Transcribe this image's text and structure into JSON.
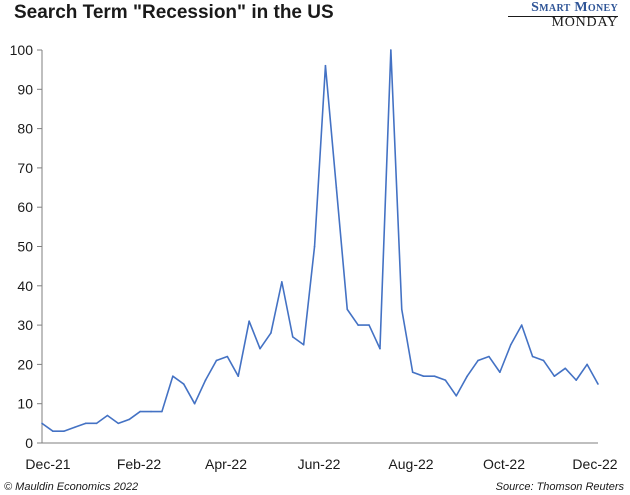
{
  "header": {
    "title": "Search Term \"Recession\" in the US",
    "brand_top": "Smart Money",
    "brand_bottom": "MONDAY"
  },
  "footer": {
    "copyright": "© Mauldin Economics 2022",
    "source": "Source: Thomson Reuters"
  },
  "colors": {
    "line": "#4472c4",
    "axis": "#7f7f7f",
    "brand": "#2f5597"
  },
  "chart_data": {
    "type": "line",
    "title": "Search Term \"Recession\" in the US",
    "xlabel": "",
    "ylabel": "",
    "ylim": [
      0,
      100
    ],
    "yticks": [
      0,
      10,
      20,
      30,
      40,
      50,
      60,
      70,
      80,
      90,
      100
    ],
    "xticks": [
      "Dec-21",
      "Feb-22",
      "Apr-22",
      "Jun-22",
      "Aug-22",
      "Oct-22",
      "Dec-22"
    ],
    "grid": false,
    "legend": "none",
    "series": [
      {
        "values": [
          5,
          3,
          3,
          4,
          5,
          5,
          7,
          5,
          6,
          8,
          8,
          8,
          17,
          15,
          10,
          16,
          21,
          22,
          17,
          31,
          24,
          28,
          41,
          27,
          25,
          50,
          96,
          65,
          34,
          30,
          30,
          24,
          100,
          34,
          18,
          17,
          17,
          16,
          12,
          17,
          21,
          22,
          18,
          25,
          30,
          22,
          21,
          17,
          19,
          16,
          20,
          15
        ]
      }
    ]
  }
}
